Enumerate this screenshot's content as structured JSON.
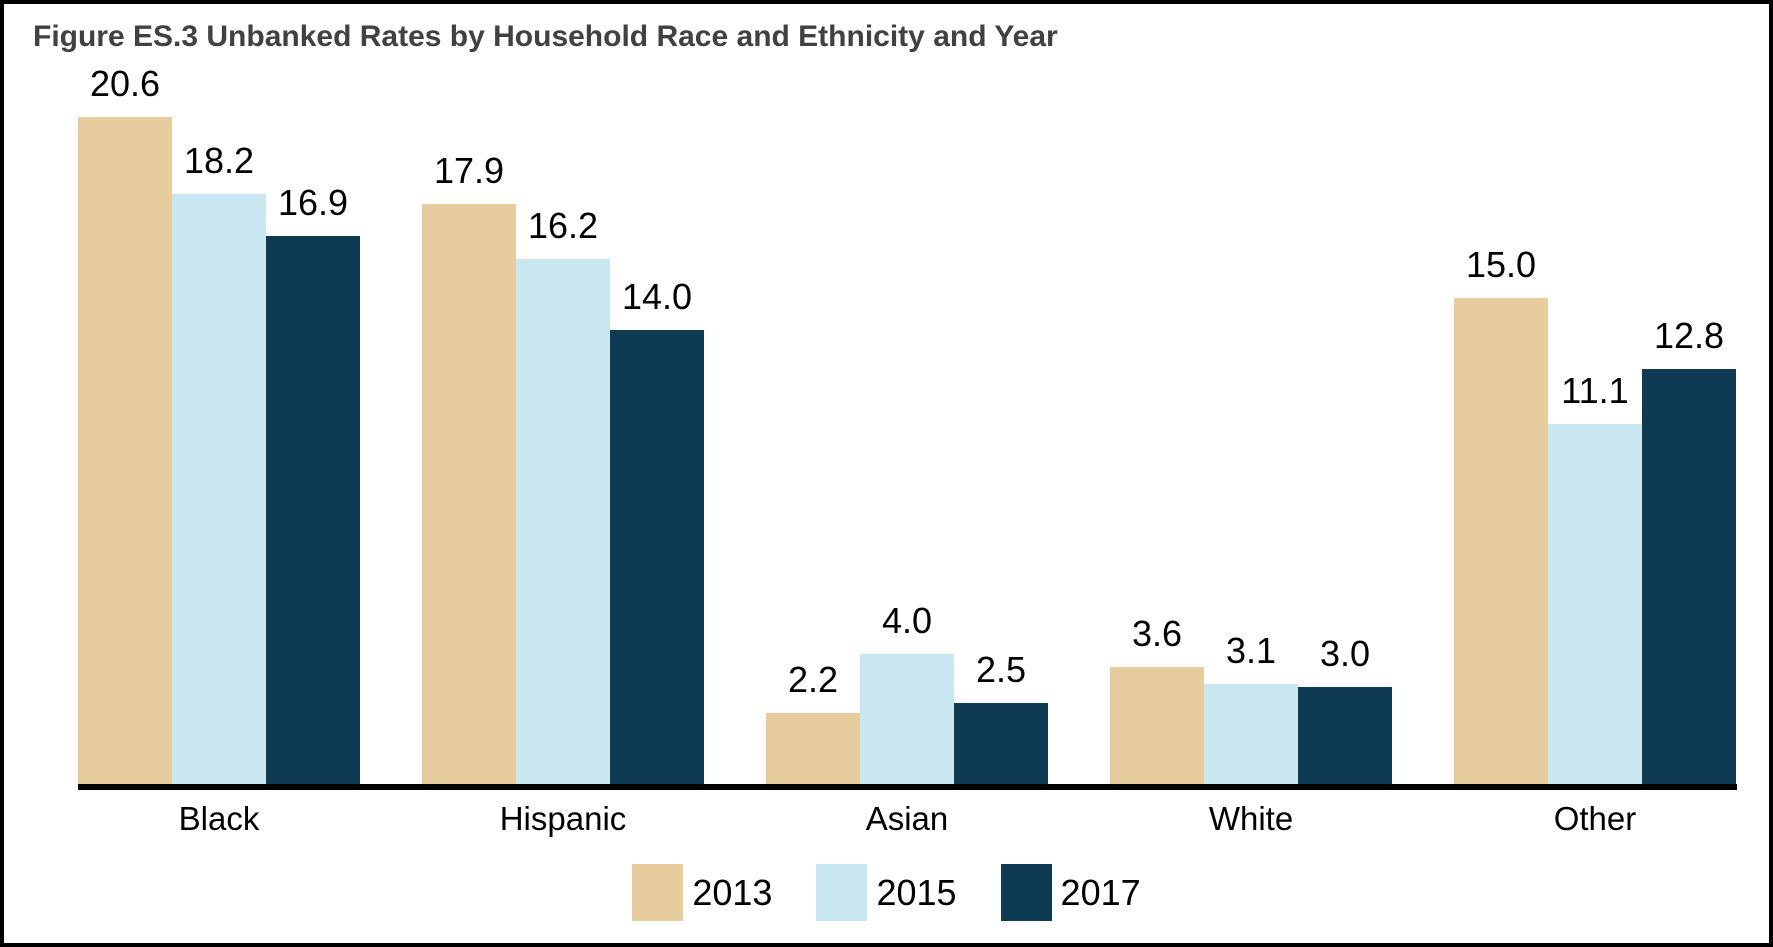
{
  "chart_data": {
    "type": "bar",
    "title": "Figure ES.3 Unbanked Rates by Household Race and Ethnicity and Year",
    "title_color": "#414042",
    "categories": [
      "Black",
      "Hispanic",
      "Asian",
      "White",
      "Other"
    ],
    "series": [
      {
        "name": "2013",
        "color": "#e7cd9d",
        "values": [
          20.6,
          17.9,
          2.2,
          3.6,
          15.0
        ]
      },
      {
        "name": "2015",
        "color": "#c9e7f1",
        "values": [
          18.2,
          16.2,
          4.0,
          3.1,
          11.1
        ]
      },
      {
        "name": "2017",
        "color": "#0e3a53",
        "values": [
          16.9,
          14.0,
          2.5,
          3.0,
          12.8
        ]
      }
    ],
    "ylabel": "",
    "xlabel": "",
    "ylim": [
      0,
      21.5
    ],
    "grid": false,
    "y_axis_shown": false,
    "value_labels": true,
    "value_label_format": "one-decimal",
    "legend_position": "bottom",
    "axis_color": "#000000",
    "background_color": "#ffffff",
    "frame_color": "#000000"
  }
}
